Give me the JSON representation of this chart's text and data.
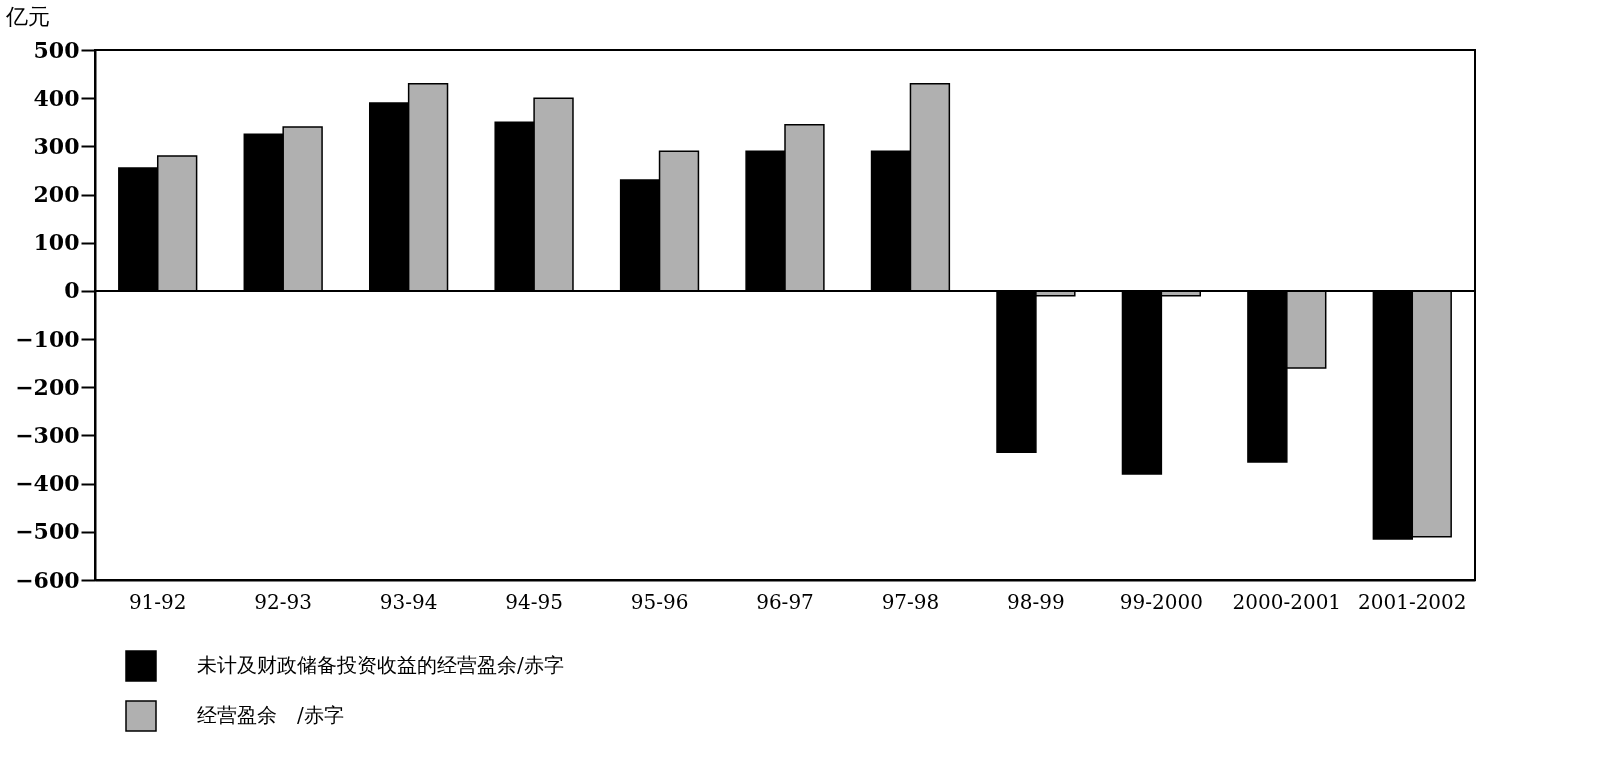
{
  "chart_data": {
    "type": "bar",
    "ylabel": "亿元",
    "categories": [
      "91-92",
      "92-93",
      "93-94",
      "94-95",
      "95-96",
      "96-97",
      "97-98",
      "98-99",
      "99-2000",
      "2000-2001",
      "2001-2002"
    ],
    "series": [
      {
        "name": "未计及财政储备投资收益的经营盈余/赤字",
        "color": "#000000",
        "values": [
          255,
          325,
          390,
          350,
          230,
          290,
          290,
          -335,
          -380,
          -355,
          -515
        ]
      },
      {
        "name": "经营盈余　/赤字",
        "color": "#b0b0b0",
        "values": [
          280,
          340,
          430,
          400,
          290,
          345,
          430,
          -10,
          -10,
          -160,
          -510
        ]
      }
    ],
    "ylim": [
      -600,
      500
    ],
    "yticks": [
      -600,
      -500,
      -400,
      -300,
      -200,
      -100,
      0,
      100,
      200,
      300,
      400,
      500
    ],
    "ref_lines": [
      {
        "axis": "y",
        "value": 0
      }
    ],
    "grid": false,
    "legend": "bottom left"
  }
}
